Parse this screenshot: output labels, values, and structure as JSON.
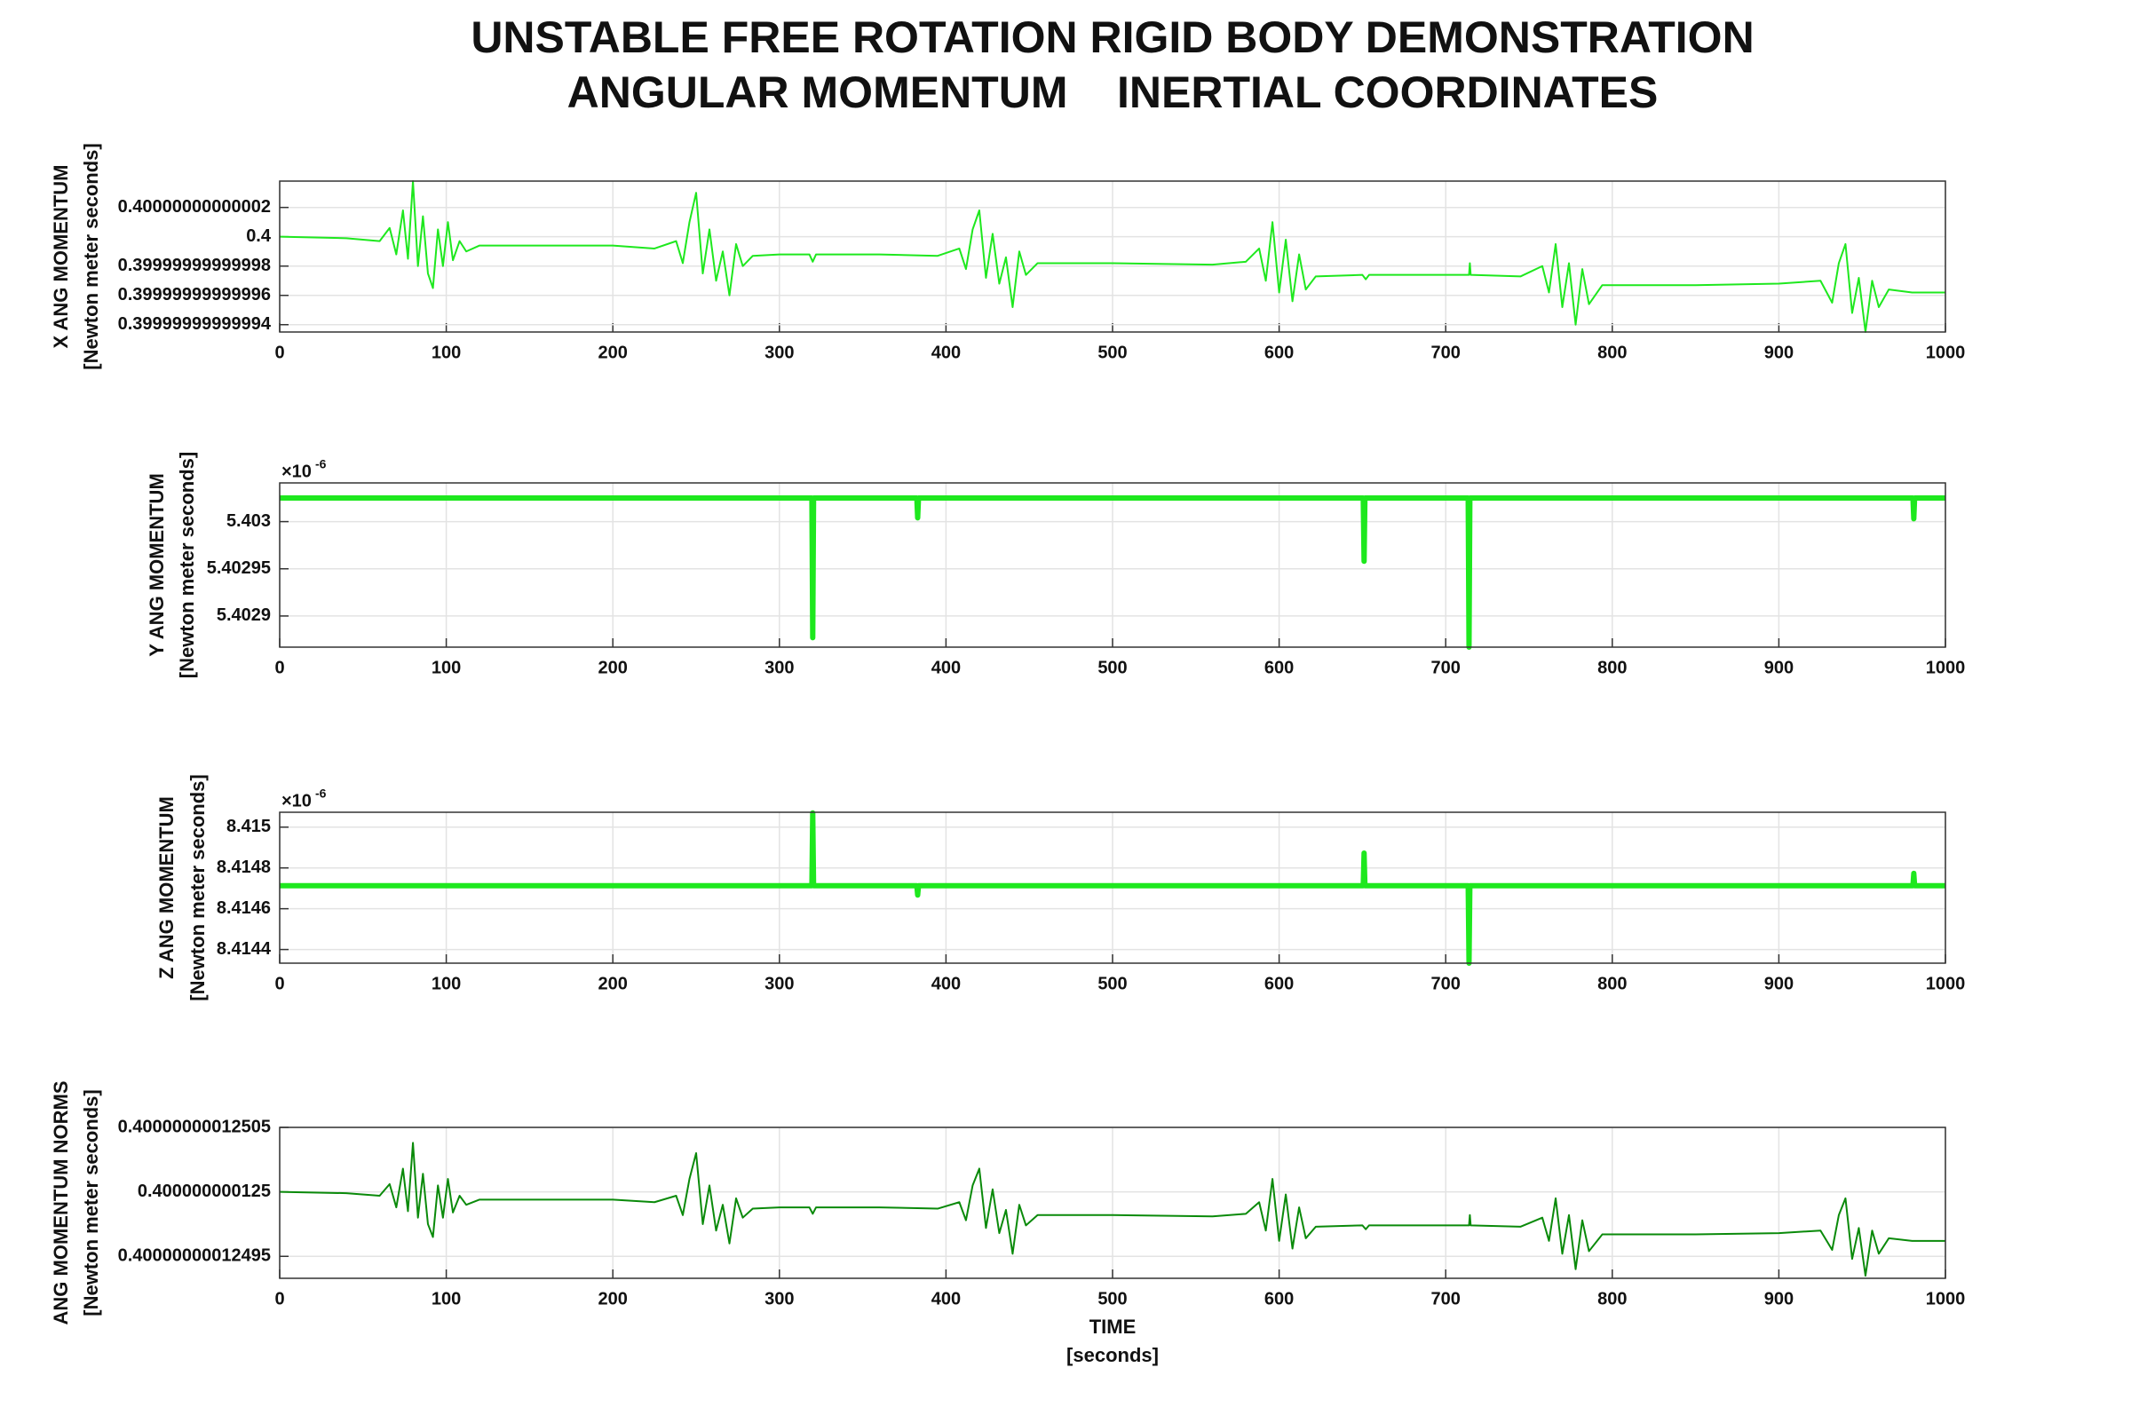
{
  "chart_data": [
    {
      "type": "line",
      "title": [
        "UNSTABLE FREE ROTATION RIGID BODY DEMONSTRATION",
        "ANGULAR MOMENTUM    INERTIAL COORDINATES"
      ],
      "ylabel": [
        "X ANG MOMENTUM",
        "[Newton meter seconds]"
      ],
      "xlim": [
        0,
        1000
      ],
      "xticks": [
        0,
        100,
        200,
        300,
        400,
        500,
        600,
        700,
        800,
        900,
        1000
      ],
      "ylim": [
        0.399999999999935,
        0.400000000000038
      ],
      "yticks": [
        0.39999999999994,
        0.39999999999996,
        0.39999999999998,
        0.4,
        0.40000000000002
      ],
      "grid": true,
      "x": [
        0,
        40,
        60,
        66,
        70,
        74,
        77,
        80,
        83,
        86,
        89,
        92,
        95,
        98,
        101,
        104,
        108,
        112,
        120,
        160,
        200,
        225,
        238,
        242,
        246,
        250,
        254,
        258,
        262,
        266,
        270,
        274,
        278,
        284,
        300,
        318,
        320,
        322,
        360,
        395,
        408,
        412,
        416,
        420,
        424,
        428,
        432,
        436,
        440,
        444,
        448,
        455,
        500,
        560,
        580,
        588,
        592,
        596,
        600,
        604,
        608,
        612,
        616,
        622,
        650,
        652,
        654,
        700,
        714,
        714.5,
        715,
        745,
        758,
        762,
        766,
        770,
        774,
        778,
        782,
        786,
        794,
        850,
        900,
        925,
        932,
        936,
        940,
        944,
        948,
        952,
        956,
        960,
        966,
        980,
        1000
      ],
      "series": [
        {
          "color": "#1ee81e",
          "values": [
            0.4,
            0.399999999999999,
            0.399999999999997,
            0.400000000000006,
            0.399999999999988,
            0.400000000000018,
            0.399999999999985,
            0.400000000000038,
            0.39999999999998,
            0.400000000000014,
            0.399999999999975,
            0.399999999999965,
            0.400000000000005,
            0.39999999999998,
            0.40000000000001,
            0.399999999999984,
            0.399999999999997,
            0.39999999999999,
            0.399999999999994,
            0.399999999999994,
            0.399999999999994,
            0.399999999999992,
            0.399999999999997,
            0.399999999999982,
            0.40000000000001,
            0.40000000000003,
            0.399999999999975,
            0.400000000000005,
            0.39999999999997,
            0.39999999999999,
            0.39999999999996,
            0.399999999999995,
            0.39999999999998,
            0.399999999999987,
            0.399999999999988,
            0.399999999999988,
            0.399999999999983,
            0.399999999999988,
            0.399999999999988,
            0.399999999999987,
            0.399999999999992,
            0.399999999999978,
            0.400000000000005,
            0.400000000000018,
            0.399999999999972,
            0.400000000000002,
            0.399999999999968,
            0.399999999999986,
            0.399999999999952,
            0.39999999999999,
            0.399999999999974,
            0.399999999999982,
            0.399999999999982,
            0.399999999999981,
            0.399999999999983,
            0.399999999999992,
            0.39999999999997,
            0.40000000000001,
            0.399999999999962,
            0.399999999999998,
            0.399999999999956,
            0.399999999999988,
            0.399999999999964,
            0.399999999999973,
            0.399999999999974,
            0.399999999999971,
            0.399999999999974,
            0.399999999999974,
            0.399999999999974,
            0.399999999999982,
            0.399999999999974,
            0.399999999999973,
            0.39999999999998,
            0.399999999999962,
            0.399999999999995,
            0.399999999999952,
            0.399999999999982,
            0.39999999999994,
            0.399999999999978,
            0.399999999999954,
            0.399999999999967,
            0.399999999999967,
            0.399999999999968,
            0.39999999999997,
            0.399999999999955,
            0.399999999999982,
            0.399999999999995,
            0.399999999999948,
            0.399999999999972,
            0.399999999999935,
            0.39999999999997,
            0.399999999999952,
            0.399999999999964,
            0.399999999999962,
            0.399999999999962
          ]
        }
      ]
    },
    {
      "type": "line",
      "ylabel": [
        "Y ANG MOMENTUM",
        "[Newton meter seconds]"
      ],
      "y_multiplier": [
        "×10",
        "-6"
      ],
      "xlim": [
        0,
        1000
      ],
      "xticks": [
        0,
        100,
        200,
        300,
        400,
        500,
        600,
        700,
        800,
        900,
        1000
      ],
      "ylim": [
        5.402867,
        5.403041
      ],
      "yticks": [
        5.4029,
        5.40295,
        5.403
      ],
      "grid": true,
      "x": [
        0,
        319.5,
        320,
        320.5,
        382.5,
        383,
        383.5,
        650.5,
        651,
        651.5,
        713.5,
        714,
        714.5,
        980.5,
        981,
        981.5,
        1000
      ],
      "series": [
        {
          "color": "#1ee81e",
          "values": [
            5.403025,
            5.403025,
            5.402877,
            5.403025,
            5.403025,
            5.403004,
            5.403025,
            5.403025,
            5.402958,
            5.403025,
            5.403025,
            5.402867,
            5.403025,
            5.403025,
            5.403003,
            5.403025,
            5.403025
          ]
        }
      ]
    },
    {
      "type": "line",
      "ylabel": [
        "Z ANG MOMENTUM",
        "[Newton meter seconds]"
      ],
      "y_multiplier": [
        "×10",
        "-6"
      ],
      "xlim": [
        0,
        1000
      ],
      "xticks": [
        0,
        100,
        200,
        300,
        400,
        500,
        600,
        700,
        800,
        900,
        1000
      ],
      "ylim": [
        8.414333,
        8.415073
      ],
      "yticks": [
        8.4144,
        8.4146,
        8.4148,
        8.415
      ],
      "grid": true,
      "x": [
        0,
        319.5,
        320,
        320.5,
        382.5,
        383,
        383.5,
        650.5,
        651,
        651.5,
        713.5,
        714,
        714.5,
        980.5,
        981,
        981.5,
        1000
      ],
      "series": [
        {
          "color": "#1ee81e",
          "values": [
            8.414713,
            8.414713,
            8.41507,
            8.414713,
            8.414713,
            8.414667,
            8.414713,
            8.414713,
            8.414873,
            8.414713,
            8.414713,
            8.414333,
            8.414713,
            8.414713,
            8.414773,
            8.414713,
            8.414713
          ]
        }
      ]
    },
    {
      "type": "line",
      "ylabel": [
        "ANG MOMENTUM NORMS",
        "[Newton meter seconds]"
      ],
      "xlabel": [
        "TIME",
        "[seconds]"
      ],
      "xlim": [
        0,
        1000
      ],
      "xticks": [
        0,
        100,
        200,
        300,
        400,
        500,
        600,
        700,
        800,
        900,
        1000
      ],
      "ylim": [
        0.400000000124933,
        0.40000000012505
      ],
      "yticks": [
        0.40000000012495,
        0.400000000125,
        0.40000000012505
      ],
      "grid": true,
      "x": [
        0,
        40,
        60,
        66,
        70,
        74,
        77,
        80,
        83,
        86,
        89,
        92,
        95,
        98,
        101,
        104,
        108,
        112,
        120,
        160,
        200,
        225,
        238,
        242,
        246,
        250,
        254,
        258,
        262,
        266,
        270,
        274,
        278,
        284,
        300,
        318,
        320,
        322,
        360,
        395,
        408,
        412,
        416,
        420,
        424,
        428,
        432,
        436,
        440,
        444,
        448,
        455,
        500,
        560,
        580,
        588,
        592,
        596,
        600,
        604,
        608,
        612,
        616,
        622,
        650,
        652,
        654,
        700,
        714,
        714.5,
        715,
        745,
        758,
        762,
        766,
        770,
        774,
        778,
        782,
        786,
        794,
        850,
        900,
        925,
        932,
        936,
        940,
        944,
        948,
        952,
        956,
        960,
        966,
        980,
        1000
      ],
      "series": [
        {
          "color": "#0a8a0a",
          "values": [
            0.400000000125,
            0.400000000124999,
            0.400000000124997,
            0.400000000125006,
            0.400000000124988,
            0.400000000125018,
            0.400000000124985,
            0.400000000125038,
            0.40000000012498,
            0.400000000125014,
            0.400000000124975,
            0.400000000124965,
            0.400000000125005,
            0.40000000012498,
            0.40000000012501,
            0.400000000124984,
            0.400000000124997,
            0.40000000012499,
            0.400000000124994,
            0.400000000124994,
            0.400000000124994,
            0.400000000124992,
            0.400000000124997,
            0.400000000124982,
            0.40000000012501,
            0.40000000012503,
            0.400000000124975,
            0.400000000125005,
            0.40000000012497,
            0.40000000012499,
            0.40000000012496,
            0.400000000124995,
            0.40000000012498,
            0.400000000124987,
            0.400000000124988,
            0.400000000124988,
            0.400000000124983,
            0.400000000124988,
            0.400000000124988,
            0.400000000124987,
            0.400000000124992,
            0.400000000124978,
            0.400000000125005,
            0.400000000125018,
            0.400000000124972,
            0.400000000125002,
            0.400000000124968,
            0.400000000124986,
            0.400000000124952,
            0.40000000012499,
            0.400000000124974,
            0.400000000124982,
            0.400000000124982,
            0.400000000124981,
            0.400000000124983,
            0.400000000124992,
            0.40000000012497,
            0.40000000012501,
            0.400000000124962,
            0.400000000124998,
            0.400000000124956,
            0.400000000124988,
            0.400000000124964,
            0.400000000124973,
            0.400000000124974,
            0.400000000124971,
            0.400000000124974,
            0.400000000124974,
            0.400000000124974,
            0.400000000124982,
            0.400000000124974,
            0.400000000124973,
            0.40000000012498,
            0.400000000124962,
            0.400000000124995,
            0.400000000124952,
            0.400000000124982,
            0.40000000012494,
            0.400000000124978,
            0.400000000124954,
            0.400000000124967,
            0.400000000124967,
            0.400000000124968,
            0.40000000012497,
            0.400000000124955,
            0.400000000124982,
            0.400000000124995,
            0.400000000124948,
            0.400000000124972,
            0.400000000124935,
            0.40000000012497,
            0.400000000124952,
            0.400000000124964,
            0.400000000124962,
            0.400000000124962
          ]
        }
      ]
    }
  ]
}
